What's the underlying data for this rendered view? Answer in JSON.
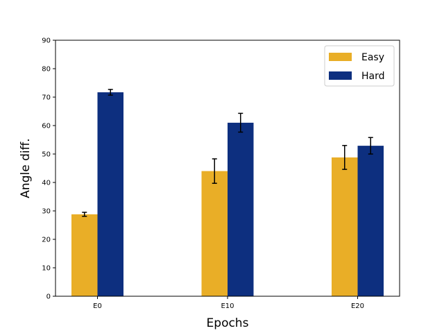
{
  "chart_data": {
    "type": "bar",
    "title": "",
    "xlabel": "Epochs",
    "ylabel": "Angle diff.",
    "categories": [
      "E0",
      "E10",
      "E20"
    ],
    "ylim": [
      0,
      90
    ],
    "yticks": [
      0,
      10,
      20,
      30,
      40,
      50,
      60,
      70,
      80,
      90
    ],
    "grid": false,
    "legend_position": "top-right",
    "series": [
      {
        "name": "Easy",
        "color": "#E9AE27",
        "values": [
          28.8,
          44.0,
          48.8
        ],
        "errors": [
          0.7,
          4.3,
          4.2
        ]
      },
      {
        "name": "Hard",
        "color": "#0D2F7F",
        "values": [
          71.7,
          61.0,
          52.9
        ],
        "errors": [
          1.0,
          3.3,
          2.9
        ]
      }
    ]
  }
}
